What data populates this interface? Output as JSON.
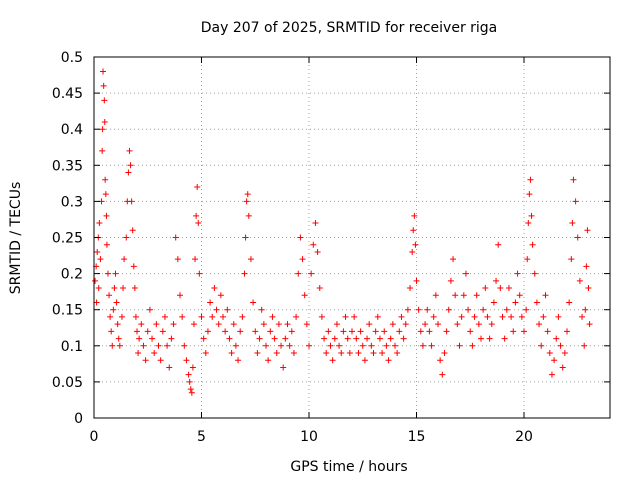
{
  "chart_data": {
    "type": "scatter",
    "title": "Day 207 of 2025, SRMTID for receiver riga",
    "xlabel": "GPS time / hours",
    "ylabel": "SRMTID / TECUs",
    "xlim": [
      0,
      24
    ],
    "ylim": [
      0,
      0.5
    ],
    "xticks": [
      0,
      5,
      10,
      15,
      20
    ],
    "yticks": [
      0,
      0.05,
      0.1,
      0.15,
      0.2,
      0.25,
      0.3,
      0.35,
      0.4,
      0.45,
      0.5
    ],
    "grid": true,
    "legend": "none",
    "marker": "+",
    "color": "#ff0000",
    "series": [
      {
        "points": [
          [
            0.05,
            0.19
          ],
          [
            0.1,
            0.21
          ],
          [
            0.12,
            0.16
          ],
          [
            0.15,
            0.23
          ],
          [
            0.2,
            0.25
          ],
          [
            0.22,
            0.18
          ],
          [
            0.25,
            0.27
          ],
          [
            0.3,
            0.22
          ],
          [
            0.35,
            0.3
          ],
          [
            0.38,
            0.37
          ],
          [
            0.4,
            0.4
          ],
          [
            0.42,
            0.48
          ],
          [
            0.45,
            0.46
          ],
          [
            0.48,
            0.44
          ],
          [
            0.5,
            0.41
          ],
          [
            0.52,
            0.33
          ],
          [
            0.55,
            0.31
          ],
          [
            0.58,
            0.28
          ],
          [
            0.6,
            0.24
          ],
          [
            0.65,
            0.2
          ],
          [
            0.7,
            0.17
          ],
          [
            0.75,
            0.14
          ],
          [
            0.8,
            0.12
          ],
          [
            0.85,
            0.1
          ],
          [
            0.9,
            0.15
          ],
          [
            0.95,
            0.18
          ],
          [
            1.0,
            0.2
          ],
          [
            1.05,
            0.16
          ],
          [
            1.1,
            0.13
          ],
          [
            1.15,
            0.11
          ],
          [
            1.2,
            0.1
          ],
          [
            1.3,
            0.14
          ],
          [
            1.35,
            0.18
          ],
          [
            1.4,
            0.22
          ],
          [
            1.5,
            0.25
          ],
          [
            1.55,
            0.3
          ],
          [
            1.6,
            0.34
          ],
          [
            1.65,
            0.37
          ],
          [
            1.7,
            0.35
          ],
          [
            1.75,
            0.3
          ],
          [
            1.8,
            0.26
          ],
          [
            1.85,
            0.21
          ],
          [
            1.9,
            0.18
          ],
          [
            1.95,
            0.14
          ],
          [
            2.0,
            0.12
          ],
          [
            2.05,
            0.09
          ],
          [
            2.1,
            0.11
          ],
          [
            2.2,
            0.13
          ],
          [
            2.3,
            0.1
          ],
          [
            2.4,
            0.08
          ],
          [
            2.5,
            0.12
          ],
          [
            2.6,
            0.15
          ],
          [
            2.7,
            0.11
          ],
          [
            2.8,
            0.09
          ],
          [
            2.9,
            0.13
          ],
          [
            3.0,
            0.1
          ],
          [
            3.1,
            0.08
          ],
          [
            3.2,
            0.12
          ],
          [
            3.3,
            0.14
          ],
          [
            3.4,
            0.1
          ],
          [
            3.5,
            0.07
          ],
          [
            3.6,
            0.11
          ],
          [
            3.7,
            0.13
          ],
          [
            3.8,
            0.25
          ],
          [
            3.9,
            0.22
          ],
          [
            4.0,
            0.17
          ],
          [
            4.1,
            0.14
          ],
          [
            4.2,
            0.1
          ],
          [
            4.3,
            0.08
          ],
          [
            4.4,
            0.06
          ],
          [
            4.45,
            0.05
          ],
          [
            4.5,
            0.04
          ],
          [
            4.55,
            0.035
          ],
          [
            4.6,
            0.07
          ],
          [
            4.65,
            0.13
          ],
          [
            4.7,
            0.22
          ],
          [
            4.75,
            0.28
          ],
          [
            4.8,
            0.32
          ],
          [
            4.85,
            0.27
          ],
          [
            4.9,
            0.2
          ],
          [
            5.0,
            0.14
          ],
          [
            5.1,
            0.11
          ],
          [
            5.2,
            0.09
          ],
          [
            5.3,
            0.12
          ],
          [
            5.4,
            0.16
          ],
          [
            5.5,
            0.14
          ],
          [
            5.6,
            0.18
          ],
          [
            5.7,
            0.15
          ],
          [
            5.8,
            0.13
          ],
          [
            5.9,
            0.17
          ],
          [
            6.0,
            0.14
          ],
          [
            6.1,
            0.12
          ],
          [
            6.2,
            0.15
          ],
          [
            6.3,
            0.11
          ],
          [
            6.4,
            0.09
          ],
          [
            6.5,
            0.13
          ],
          [
            6.6,
            0.1
          ],
          [
            6.7,
            0.08
          ],
          [
            6.8,
            0.12
          ],
          [
            6.9,
            0.14
          ],
          [
            7.0,
            0.2
          ],
          [
            7.05,
            0.25
          ],
          [
            7.1,
            0.3
          ],
          [
            7.15,
            0.31
          ],
          [
            7.2,
            0.28
          ],
          [
            7.3,
            0.22
          ],
          [
            7.4,
            0.16
          ],
          [
            7.5,
            0.12
          ],
          [
            7.6,
            0.09
          ],
          [
            7.7,
            0.11
          ],
          [
            7.8,
            0.15
          ],
          [
            7.9,
            0.13
          ],
          [
            8.0,
            0.1
          ],
          [
            8.1,
            0.08
          ],
          [
            8.2,
            0.12
          ],
          [
            8.3,
            0.14
          ],
          [
            8.4,
            0.11
          ],
          [
            8.5,
            0.09
          ],
          [
            8.6,
            0.13
          ],
          [
            8.7,
            0.1
          ],
          [
            8.8,
            0.07
          ],
          [
            8.9,
            0.11
          ],
          [
            9.0,
            0.13
          ],
          [
            9.1,
            0.1
          ],
          [
            9.2,
            0.12
          ],
          [
            9.3,
            0.09
          ],
          [
            9.4,
            0.14
          ],
          [
            9.5,
            0.2
          ],
          [
            9.6,
            0.25
          ],
          [
            9.7,
            0.22
          ],
          [
            9.8,
            0.17
          ],
          [
            9.9,
            0.13
          ],
          [
            10.0,
            0.1
          ],
          [
            10.1,
            0.2
          ],
          [
            10.2,
            0.24
          ],
          [
            10.3,
            0.27
          ],
          [
            10.4,
            0.23
          ],
          [
            10.5,
            0.18
          ],
          [
            10.6,
            0.14
          ],
          [
            10.7,
            0.11
          ],
          [
            10.8,
            0.09
          ],
          [
            10.9,
            0.12
          ],
          [
            11.0,
            0.1
          ],
          [
            11.1,
            0.08
          ],
          [
            11.2,
            0.11
          ],
          [
            11.3,
            0.13
          ],
          [
            11.4,
            0.1
          ],
          [
            11.5,
            0.09
          ],
          [
            11.6,
            0.12
          ],
          [
            11.7,
            0.14
          ],
          [
            11.8,
            0.11
          ],
          [
            11.9,
            0.09
          ],
          [
            12.0,
            0.12
          ],
          [
            12.1,
            0.14
          ],
          [
            12.2,
            0.11
          ],
          [
            12.3,
            0.09
          ],
          [
            12.4,
            0.12
          ],
          [
            12.5,
            0.1
          ],
          [
            12.6,
            0.08
          ],
          [
            12.7,
            0.11
          ],
          [
            12.8,
            0.13
          ],
          [
            12.9,
            0.1
          ],
          [
            13.0,
            0.09
          ],
          [
            13.1,
            0.12
          ],
          [
            13.2,
            0.14
          ],
          [
            13.3,
            0.11
          ],
          [
            13.4,
            0.09
          ],
          [
            13.5,
            0.12
          ],
          [
            13.6,
            0.1
          ],
          [
            13.7,
            0.08
          ],
          [
            13.8,
            0.11
          ],
          [
            13.9,
            0.13
          ],
          [
            14.0,
            0.1
          ],
          [
            14.1,
            0.09
          ],
          [
            14.2,
            0.12
          ],
          [
            14.3,
            0.14
          ],
          [
            14.4,
            0.11
          ],
          [
            14.5,
            0.13
          ],
          [
            14.6,
            0.15
          ],
          [
            14.7,
            0.18
          ],
          [
            14.8,
            0.23
          ],
          [
            14.85,
            0.26
          ],
          [
            14.9,
            0.28
          ],
          [
            14.95,
            0.24
          ],
          [
            15.0,
            0.19
          ],
          [
            15.1,
            0.15
          ],
          [
            15.2,
            0.12
          ],
          [
            15.3,
            0.1
          ],
          [
            15.4,
            0.13
          ],
          [
            15.5,
            0.15
          ],
          [
            15.6,
            0.12
          ],
          [
            15.7,
            0.1
          ],
          [
            15.8,
            0.14
          ],
          [
            15.9,
            0.17
          ],
          [
            16.0,
            0.13
          ],
          [
            16.1,
            0.08
          ],
          [
            16.2,
            0.06
          ],
          [
            16.3,
            0.09
          ],
          [
            16.4,
            0.12
          ],
          [
            16.5,
            0.15
          ],
          [
            16.6,
            0.19
          ],
          [
            16.7,
            0.22
          ],
          [
            16.8,
            0.17
          ],
          [
            16.9,
            0.13
          ],
          [
            17.0,
            0.1
          ],
          [
            17.1,
            0.14
          ],
          [
            17.2,
            0.17
          ],
          [
            17.3,
            0.2
          ],
          [
            17.4,
            0.15
          ],
          [
            17.5,
            0.12
          ],
          [
            17.6,
            0.1
          ],
          [
            17.7,
            0.14
          ],
          [
            17.8,
            0.17
          ],
          [
            17.9,
            0.13
          ],
          [
            18.0,
            0.11
          ],
          [
            18.1,
            0.15
          ],
          [
            18.2,
            0.18
          ],
          [
            18.3,
            0.14
          ],
          [
            18.4,
            0.11
          ],
          [
            18.5,
            0.13
          ],
          [
            18.6,
            0.16
          ],
          [
            18.7,
            0.19
          ],
          [
            18.8,
            0.24
          ],
          [
            18.9,
            0.18
          ],
          [
            19.0,
            0.14
          ],
          [
            19.1,
            0.11
          ],
          [
            19.2,
            0.15
          ],
          [
            19.3,
            0.18
          ],
          [
            19.4,
            0.14
          ],
          [
            19.5,
            0.12
          ],
          [
            19.6,
            0.16
          ],
          [
            19.7,
            0.2
          ],
          [
            19.8,
            0.17
          ],
          [
            19.9,
            0.14
          ],
          [
            20.0,
            0.12
          ],
          [
            20.1,
            0.15
          ],
          [
            20.15,
            0.22
          ],
          [
            20.2,
            0.27
          ],
          [
            20.25,
            0.31
          ],
          [
            20.3,
            0.33
          ],
          [
            20.35,
            0.28
          ],
          [
            20.4,
            0.24
          ],
          [
            20.5,
            0.2
          ],
          [
            20.6,
            0.16
          ],
          [
            20.7,
            0.13
          ],
          [
            20.8,
            0.1
          ],
          [
            20.9,
            0.14
          ],
          [
            21.0,
            0.17
          ],
          [
            21.1,
            0.12
          ],
          [
            21.2,
            0.09
          ],
          [
            21.3,
            0.06
          ],
          [
            21.4,
            0.08
          ],
          [
            21.5,
            0.11
          ],
          [
            21.6,
            0.14
          ],
          [
            21.7,
            0.1
          ],
          [
            21.8,
            0.07
          ],
          [
            21.9,
            0.09
          ],
          [
            22.0,
            0.12
          ],
          [
            22.1,
            0.16
          ],
          [
            22.2,
            0.22
          ],
          [
            22.25,
            0.27
          ],
          [
            22.3,
            0.33
          ],
          [
            22.4,
            0.3
          ],
          [
            22.5,
            0.25
          ],
          [
            22.6,
            0.19
          ],
          [
            22.7,
            0.14
          ],
          [
            22.8,
            0.1
          ],
          [
            22.85,
            0.15
          ],
          [
            22.9,
            0.21
          ],
          [
            22.95,
            0.26
          ],
          [
            23.0,
            0.18
          ],
          [
            23.05,
            0.13
          ]
        ]
      }
    ]
  }
}
